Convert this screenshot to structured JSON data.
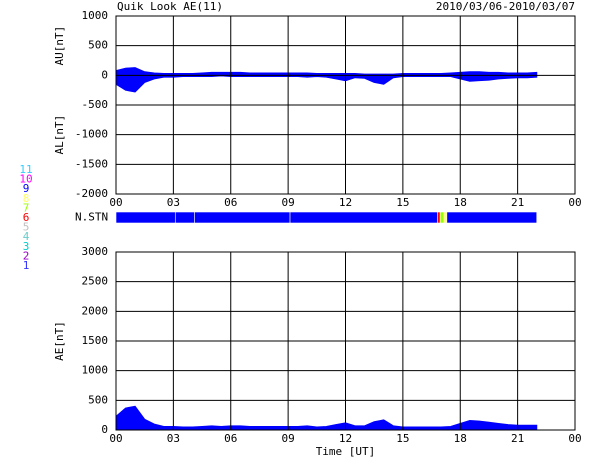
{
  "header": {
    "title": "Quik Look AE(11)",
    "date_range": "2010/03/06-2010/03/07"
  },
  "chart_data": [
    {
      "type": "area",
      "ylabel_upper": "AU[nT]",
      "ylabel_lower": "AL[nT]",
      "xlim": [
        0,
        24
      ],
      "xticks": [
        {
          "value": 0,
          "label": "00"
        },
        {
          "value": 3,
          "label": "03"
        },
        {
          "value": 6,
          "label": "06"
        },
        {
          "value": 9,
          "label": "09"
        },
        12,
        15,
        18,
        21,
        {
          "value": 24,
          "label": "00"
        }
      ],
      "ylim": [
        -2000,
        1000
      ],
      "yticks": [
        -2000,
        -1500,
        -1000,
        -500,
        0,
        500,
        1000
      ],
      "grid": true,
      "x": [
        0,
        0.5,
        1,
        1.5,
        2,
        2.5,
        3,
        3.5,
        4,
        4.5,
        5,
        5.5,
        6,
        6.5,
        7,
        7.5,
        8,
        8.5,
        9,
        9.5,
        10,
        10.5,
        11,
        11.5,
        12,
        12.5,
        13,
        13.5,
        14,
        14.5,
        15,
        15.5,
        16,
        16.5,
        17,
        17.5,
        18,
        18.5,
        19,
        19.5,
        20,
        20.5,
        21,
        21.5,
        22
      ],
      "series": [
        {
          "color": "#0000ff",
          "values": [
            80,
            120,
            130,
            60,
            40,
            30,
            30,
            30,
            30,
            40,
            50,
            50,
            50,
            50,
            40,
            40,
            40,
            40,
            40,
            40,
            40,
            30,
            30,
            30,
            30,
            30,
            20,
            20,
            20,
            20,
            30,
            30,
            30,
            30,
            30,
            40,
            50,
            60,
            60,
            50,
            50,
            40,
            40,
            40,
            50
          ]
        },
        {
          "color": "#0000ff",
          "values": [
            -150,
            -250,
            -280,
            -120,
            -60,
            -30,
            -30,
            -20,
            -20,
            -20,
            -20,
            -10,
            -20,
            -20,
            -20,
            -20,
            -20,
            -20,
            -20,
            -20,
            -30,
            -20,
            -30,
            -60,
            -90,
            -40,
            -50,
            -120,
            -150,
            -40,
            -20,
            -20,
            -20,
            -20,
            -20,
            -20,
            -60,
            -100,
            -90,
            -80,
            -60,
            -50,
            -40,
            -40,
            -30
          ]
        }
      ]
    },
    {
      "type": "timeline",
      "label": "N.STN",
      "levels": [
        11,
        10,
        9,
        8,
        7,
        6,
        5,
        4,
        3,
        2,
        1
      ],
      "level_colors": [
        "#33ccff",
        "#ff00ff",
        "#0000ff",
        "#ffff66",
        "#99ff00",
        "#ff0000",
        "#c0c0c0",
        "#66cccc",
        "#00cccc",
        "#9900cc",
        "#3333ff"
      ],
      "segments": [
        {
          "start": 0,
          "end": 3.1,
          "value": 9
        },
        {
          "start": 3.1,
          "end": 4.1,
          "value": 9
        },
        {
          "start": 4.1,
          "end": 9.1,
          "value": 9
        },
        {
          "start": 9.1,
          "end": 16.8,
          "value": 9
        },
        {
          "start": 16.8,
          "end": 16.95,
          "value": 6
        },
        {
          "start": 16.95,
          "end": 17.15,
          "value": 7
        },
        {
          "start": 17.15,
          "end": 17.3,
          "value": 8
        },
        {
          "start": 17.3,
          "end": 22,
          "value": 9
        }
      ]
    },
    {
      "type": "area",
      "ylabel": "AE[nT]",
      "xlabel": "Time [UT]",
      "xlim": [
        0,
        24
      ],
      "xticks": [
        {
          "value": 0,
          "label": "00"
        },
        {
          "value": 3,
          "label": "03"
        },
        {
          "value": 6,
          "label": "06"
        },
        {
          "value": 9,
          "label": "09"
        },
        12,
        15,
        18,
        21,
        {
          "value": 24,
          "label": "00"
        }
      ],
      "ylim": [
        0,
        3000
      ],
      "yticks": [
        0,
        500,
        1000,
        1500,
        2000,
        2500,
        3000
      ],
      "grid": true,
      "x": [
        0,
        0.5,
        1,
        1.5,
        2,
        2.5,
        3,
        3.5,
        4,
        4.5,
        5,
        5.5,
        6,
        6.5,
        7,
        7.5,
        8,
        8.5,
        9,
        9.5,
        10,
        10.5,
        11,
        11.5,
        12,
        12.5,
        13,
        13.5,
        14,
        14.5,
        15,
        15.5,
        16,
        16.5,
        17,
        17.5,
        18,
        18.5,
        19,
        19.5,
        20,
        20.5,
        21,
        21.5,
        22
      ],
      "series": [
        {
          "color": "#0000ff",
          "values": [
            230,
            370,
            400,
            180,
            100,
            60,
            60,
            50,
            50,
            60,
            70,
            60,
            70,
            70,
            60,
            60,
            60,
            60,
            60,
            60,
            70,
            50,
            60,
            90,
            120,
            70,
            70,
            140,
            170,
            70,
            50,
            50,
            50,
            50,
            50,
            60,
            110,
            160,
            150,
            130,
            110,
            90,
            80,
            80,
            80
          ]
        }
      ]
    }
  ]
}
